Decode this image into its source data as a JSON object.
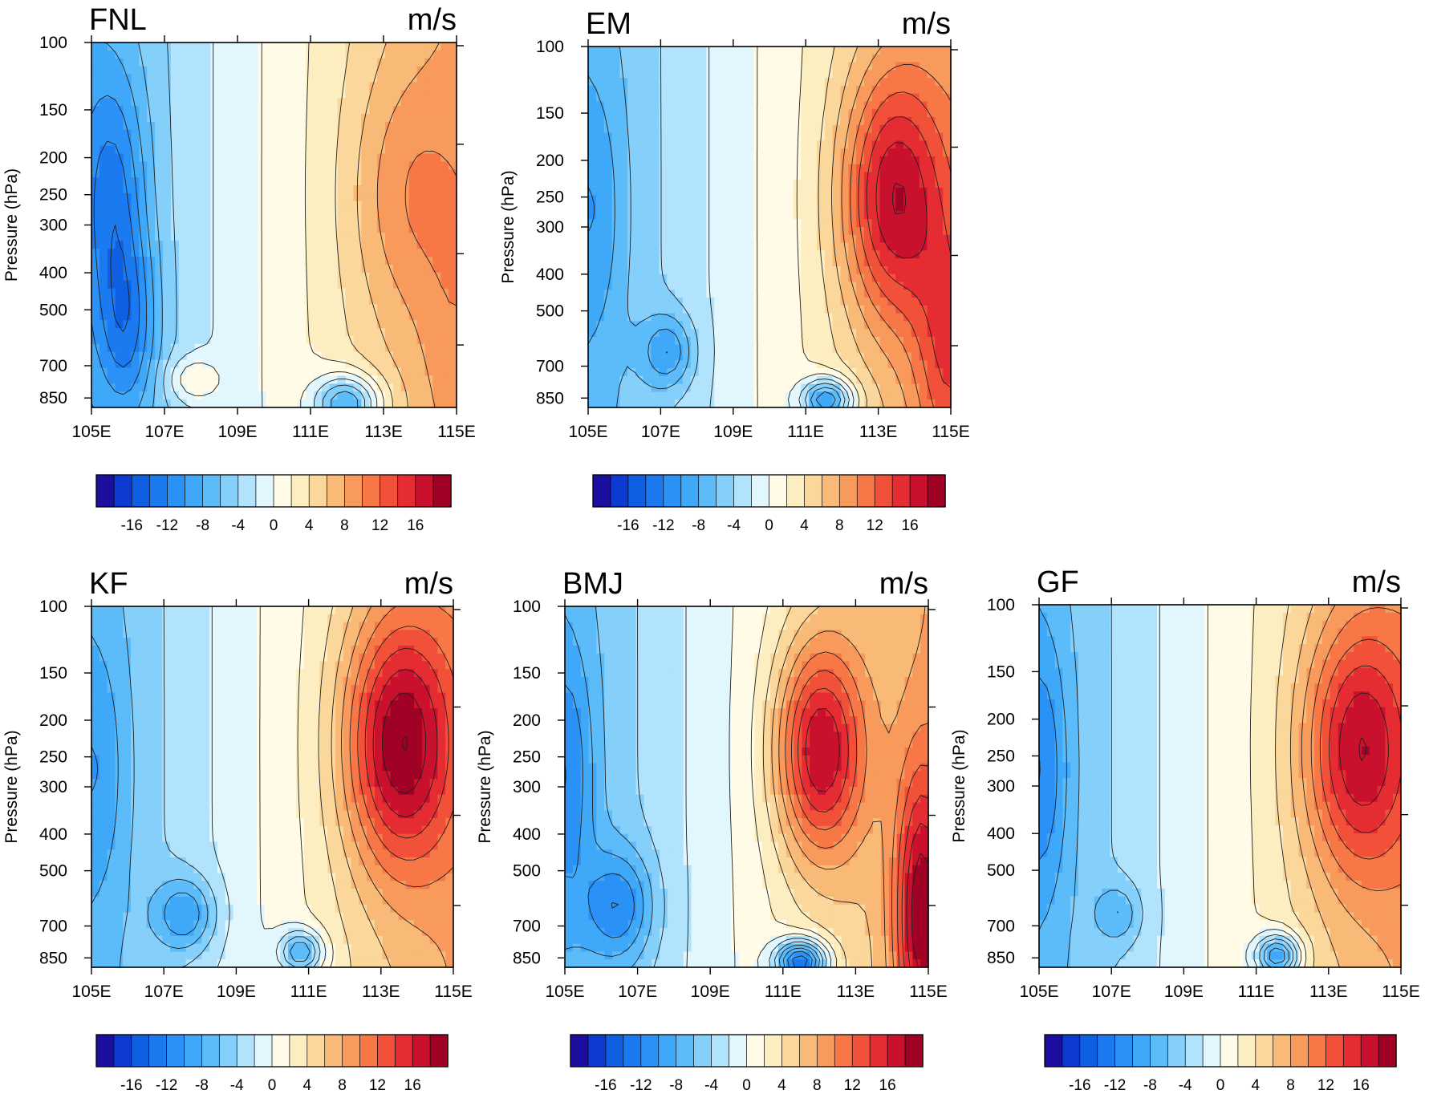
{
  "chart_data": [
    {
      "type": "contour",
      "title": "FNL",
      "units": "m/s",
      "ylabel": "Pressure (hPa)",
      "x_ticks": [
        "105E",
        "107E",
        "109E",
        "111E",
        "113E",
        "115E"
      ],
      "y_ticks": [
        "100",
        "150",
        "200",
        "250",
        "300",
        "400",
        "500",
        "700",
        "850"
      ],
      "xlim": [
        105,
        115
      ],
      "ylim": [
        100,
        900
      ],
      "y_scale": "log",
      "levels": [
        -20,
        -18,
        -16,
        -14,
        -12,
        -10,
        -8,
        -6,
        -4,
        -2,
        0,
        2,
        4,
        6,
        8,
        10,
        12,
        14,
        16,
        18,
        20
      ],
      "colorbar_labels": [
        "-16",
        "-12",
        "-8",
        "-4",
        "0",
        "4",
        "8",
        "12",
        "16"
      ],
      "features": [
        {
          "x": 105.6,
          "p": 250,
          "value": -13,
          "wx": 0.9,
          "wy": 0.35
        },
        {
          "x": 106.0,
          "p": 560,
          "value": -12,
          "wx": 0.8,
          "wy": 0.25
        },
        {
          "x": 113.6,
          "p": 250,
          "value": 10,
          "wx": 1.6,
          "wy": 0.35
        },
        {
          "x": 114.8,
          "p": 600,
          "value": 9,
          "wx": 0.8,
          "wy": 0.3
        },
        {
          "x": 107.8,
          "p": 760,
          "value": 2,
          "wx": 0.7,
          "wy": 0.06
        },
        {
          "x": 112.0,
          "p": 880,
          "value": -8,
          "wx": 0.9,
          "wy": 0.08
        }
      ]
    },
    {
      "type": "contour",
      "title": "EM",
      "units": "m/s",
      "ylabel": "Pressure (hPa)",
      "x_ticks": [
        "105E",
        "107E",
        "109E",
        "111E",
        "113E",
        "115E"
      ],
      "y_ticks": [
        "100",
        "150",
        "200",
        "250",
        "300",
        "400",
        "500",
        "700",
        "850"
      ],
      "xlim": [
        105,
        115
      ],
      "ylim": [
        100,
        900
      ],
      "y_scale": "log",
      "levels": [
        -20,
        -18,
        -16,
        -14,
        -12,
        -10,
        -8,
        -6,
        -4,
        -2,
        0,
        2,
        4,
        6,
        8,
        10,
        12,
        14,
        16,
        18,
        20
      ],
      "colorbar_labels": [
        "-16",
        "-12",
        "-8",
        "-4",
        "0",
        "4",
        "8",
        "12",
        "16"
      ],
      "features": [
        {
          "x": 105.2,
          "p": 270,
          "value": -10,
          "wx": 0.8,
          "wy": 0.35
        },
        {
          "x": 107.2,
          "p": 640,
          "value": -10,
          "wx": 0.7,
          "wy": 0.1
        },
        {
          "x": 113.4,
          "p": 250,
          "value": 18,
          "wx": 1.4,
          "wy": 0.35
        },
        {
          "x": 114.9,
          "p": 650,
          "value": 14,
          "wx": 0.9,
          "wy": 0.35
        },
        {
          "x": 111.6,
          "p": 860,
          "value": -10,
          "wx": 0.7,
          "wy": 0.06
        }
      ]
    },
    {
      "type": "contour",
      "title": "KF",
      "units": "m/s",
      "ylabel": "Pressure (hPa)",
      "x_ticks": [
        "105E",
        "107E",
        "109E",
        "111E",
        "113E",
        "115E"
      ],
      "y_ticks": [
        "100",
        "150",
        "200",
        "250",
        "300",
        "400",
        "500",
        "700",
        "850"
      ],
      "xlim": [
        105,
        115
      ],
      "ylim": [
        100,
        900
      ],
      "y_scale": "log",
      "levels": [
        -20,
        -18,
        -16,
        -14,
        -12,
        -10,
        -8,
        -6,
        -4,
        -2,
        0,
        2,
        4,
        6,
        8,
        10,
        12,
        14,
        16,
        18,
        20
      ],
      "colorbar_labels": [
        "-16",
        "-12",
        "-8",
        "-4",
        "0",
        "4",
        "8",
        "12",
        "16"
      ],
      "features": [
        {
          "x": 105.2,
          "p": 270,
          "value": -10,
          "wx": 0.8,
          "wy": 0.35
        },
        {
          "x": 107.6,
          "p": 650,
          "value": -10,
          "wx": 0.8,
          "wy": 0.1
        },
        {
          "x": 113.5,
          "p": 230,
          "value": 20,
          "wx": 1.5,
          "wy": 0.35
        },
        {
          "x": 110.8,
          "p": 820,
          "value": -8,
          "wx": 0.6,
          "wy": 0.06
        }
      ]
    },
    {
      "type": "contour",
      "title": "BMJ",
      "units": "m/s",
      "ylabel": "Pressure (hPa)",
      "x_ticks": [
        "105E",
        "107E",
        "109E",
        "111E",
        "113E",
        "115E"
      ],
      "y_ticks": [
        "100",
        "150",
        "200",
        "250",
        "300",
        "400",
        "500",
        "700",
        "850"
      ],
      "xlim": [
        105,
        115
      ],
      "ylim": [
        100,
        900
      ],
      "y_scale": "log",
      "levels": [
        -20,
        -18,
        -16,
        -14,
        -12,
        -10,
        -8,
        -6,
        -4,
        -2,
        0,
        2,
        4,
        6,
        8,
        10,
        12,
        14,
        16,
        18,
        20
      ],
      "colorbar_labels": [
        "-16",
        "-12",
        "-8",
        "-4",
        "0",
        "4",
        "8",
        "12",
        "16"
      ],
      "features": [
        {
          "x": 105.1,
          "p": 280,
          "value": -12,
          "wx": 0.7,
          "wy": 0.35
        },
        {
          "x": 106.5,
          "p": 620,
          "value": -12,
          "wx": 0.9,
          "wy": 0.15
        },
        {
          "x": 112.0,
          "p": 240,
          "value": 18,
          "wx": 1.2,
          "wy": 0.3
        },
        {
          "x": 114.8,
          "p": 650,
          "value": 20,
          "wx": 0.7,
          "wy": 0.4
        },
        {
          "x": 111.5,
          "p": 870,
          "value": -14,
          "wx": 0.7,
          "wy": 0.06
        }
      ]
    },
    {
      "type": "contour",
      "title": "GF",
      "units": "m/s",
      "ylabel": "Pressure (hPa)",
      "x_ticks": [
        "105E",
        "107E",
        "109E",
        "111E",
        "113E",
        "115E"
      ],
      "y_ticks": [
        "100",
        "150",
        "200",
        "250",
        "300",
        "400",
        "500",
        "700",
        "850"
      ],
      "xlim": [
        105,
        115
      ],
      "ylim": [
        100,
        900
      ],
      "y_scale": "log",
      "levels": [
        -20,
        -18,
        -16,
        -14,
        -12,
        -10,
        -8,
        -6,
        -4,
        -2,
        0,
        2,
        4,
        6,
        8,
        10,
        12,
        14,
        16,
        18,
        20
      ],
      "colorbar_labels": [
        "-16",
        "-12",
        "-8",
        "-4",
        "0",
        "4",
        "8",
        "12",
        "16"
      ],
      "features": [
        {
          "x": 105.1,
          "p": 270,
          "value": -12,
          "wx": 0.7,
          "wy": 0.35
        },
        {
          "x": 107.2,
          "p": 650,
          "value": -8,
          "wx": 0.6,
          "wy": 0.08
        },
        {
          "x": 113.8,
          "p": 240,
          "value": 18,
          "wx": 1.5,
          "wy": 0.35
        },
        {
          "x": 111.6,
          "p": 840,
          "value": -10,
          "wx": 0.6,
          "wy": 0.06
        }
      ]
    }
  ],
  "colors": {
    "palette": [
      "#1c0fa0",
      "#0d3ad1",
      "#0f5fe2",
      "#1b7af0",
      "#2a92f6",
      "#3fa8f8",
      "#5cbbf9",
      "#85cffb",
      "#b2e3fd",
      "#e2f6fe",
      "#fffbe6",
      "#fdeec1",
      "#fbd79b",
      "#f9ba78",
      "#f99a5d",
      "#f77747",
      "#f25139",
      "#e52c33",
      "#c9112e",
      "#a00225"
    ],
    "contour_line": "#1f1f1f",
    "axis": "#000000"
  }
}
